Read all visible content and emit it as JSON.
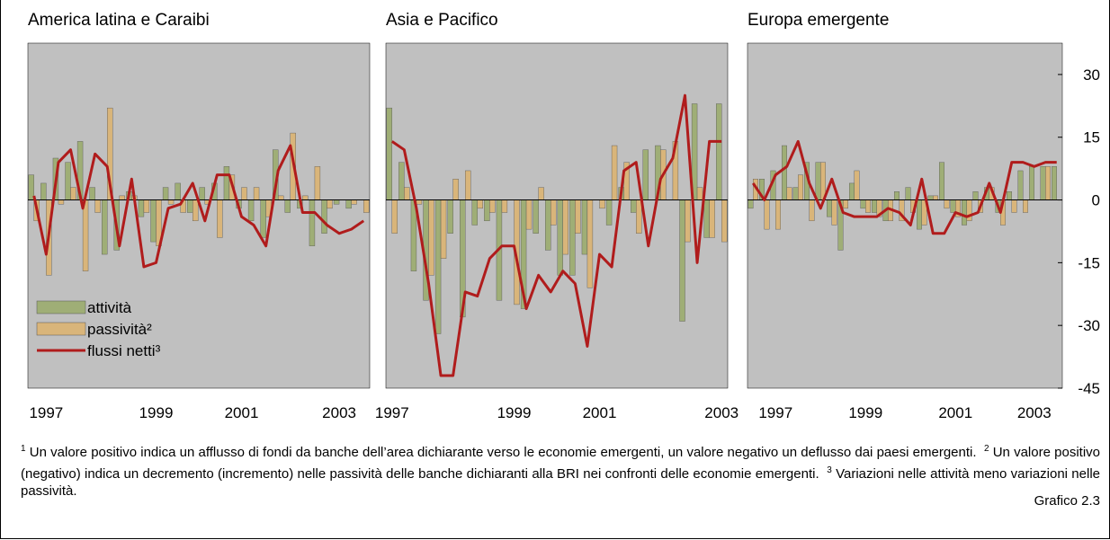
{
  "chart_data": [
    {
      "type": "bar",
      "title": "America latina e Caraibi",
      "categories": [
        null,
        "1997",
        null,
        null,
        null,
        null,
        null,
        null,
        null,
        null,
        "1999",
        null,
        null,
        null,
        null,
        null,
        null,
        "2001",
        null,
        null,
        null,
        null,
        null,
        null,
        null,
        "2003",
        null,
        null
      ],
      "legend": "lower left",
      "series": [
        {
          "name": "attività",
          "color": "#9fae76",
          "values": [
            6,
            4,
            10,
            9,
            14,
            3,
            -13,
            -12,
            2,
            -4,
            -10,
            3,
            4,
            -3,
            3,
            4,
            8,
            -2,
            -5,
            -9,
            12,
            -3,
            -2,
            -11,
            -8,
            -1,
            -2,
            0
          ]
        },
        {
          "name": "passività²",
          "color": "#d9b57a",
          "values": [
            -5,
            -18,
            -1,
            3,
            -17,
            -3,
            22,
            1,
            1,
            -3,
            -11,
            -1,
            -3,
            -5,
            -1,
            -9,
            6,
            3,
            3,
            -4,
            1,
            16,
            1,
            8,
            -2,
            0,
            -1,
            -3
          ]
        },
        {
          "name": "flussi netti³",
          "type": "line",
          "color": "#b01c1c",
          "values": [
            1,
            -13,
            9,
            12,
            -2,
            11,
            8,
            -11,
            5,
            -16,
            -15,
            -2,
            -1,
            4,
            -5,
            6,
            6,
            -4,
            -6,
            -11,
            7,
            13,
            -3,
            -3,
            -6,
            -8,
            -7,
            -5
          ]
        }
      ],
      "ylim": [
        -45,
        37.5
      ]
    },
    {
      "type": "bar",
      "title": "Asia e Pacifico",
      "categories": [
        "1997",
        null,
        null,
        null,
        null,
        null,
        null,
        null,
        null,
        null,
        "1999",
        null,
        null,
        null,
        null,
        null,
        null,
        "2001",
        null,
        null,
        null,
        null,
        null,
        null,
        null,
        null,
        null,
        "2003"
      ],
      "series": [
        {
          "color": "#9fae76",
          "values": [
            22,
            9,
            -17,
            -24,
            -32,
            -8,
            -28,
            -6,
            -5,
            -24,
            0,
            -26,
            -8,
            -12,
            -18,
            -18,
            -13,
            0,
            -6,
            3,
            -3,
            12,
            13,
            0,
            -29,
            23,
            -9,
            23
          ]
        },
        {
          "color": "#d9b57a",
          "values": [
            -8,
            3,
            -1,
            -18,
            -14,
            5,
            7,
            -2,
            -3,
            -3,
            -25,
            -7,
            3,
            -6,
            -13,
            -8,
            -21,
            -2,
            13,
            9,
            -8,
            0,
            12,
            14,
            -10,
            3,
            -9,
            -10
          ]
        },
        {
          "type": "line",
          "color": "#b01c1c",
          "values": [
            14,
            12,
            -2,
            -20,
            -42,
            -42,
            -22,
            -23,
            -14,
            -11,
            -11,
            -26,
            -18,
            -22,
            -17,
            -20,
            -35,
            -13,
            -16,
            7,
            9,
            -11,
            5,
            10,
            25,
            -15,
            14,
            14
          ]
        }
      ],
      "ylim": [
        -45,
        37.5
      ]
    },
    {
      "type": "bar",
      "title": "Europa emergente",
      "categories": [
        null,
        null,
        "1997",
        null,
        null,
        null,
        null,
        null,
        null,
        null,
        "1999",
        null,
        null,
        null,
        null,
        null,
        null,
        null,
        "2001",
        null,
        null,
        null,
        null,
        null,
        null,
        "2003",
        null,
        null
      ],
      "series": [
        {
          "color": "#9fae76",
          "values": [
            -2,
            5,
            7,
            13,
            3,
            9,
            9,
            -4,
            -12,
            4,
            -2,
            -3,
            -5,
            2,
            3,
            -7,
            1,
            9,
            -3,
            -6,
            2,
            3,
            -3,
            2,
            7,
            8,
            8,
            8
          ]
        },
        {
          "color": "#d9b57a",
          "values": [
            5,
            -7,
            -7,
            3,
            6,
            -5,
            9,
            -6,
            -2,
            7,
            -3,
            -4,
            -5,
            -5,
            -3,
            -6,
            1,
            -2,
            -4,
            -5,
            -3,
            3,
            -6,
            -3,
            -3,
            0,
            8,
            0
          ]
        },
        {
          "type": "line",
          "color": "#b01c1c",
          "values": [
            4,
            0,
            6,
            8,
            14,
            4,
            -2,
            5,
            -3,
            -4,
            -4,
            -4,
            -2,
            -3,
            -6,
            5,
            -8,
            -8,
            -3,
            -4,
            -3,
            4,
            -3,
            9,
            9,
            8,
            9,
            9
          ]
        }
      ],
      "ylim": [
        -45,
        37.5
      ],
      "yticks": [
        30,
        15,
        0,
        -15,
        -30,
        -45
      ]
    }
  ],
  "footnotes": [
    {
      "mark": "1",
      "text": "Un valore positivo indica un afflusso di fondi da banche dell’area dichiarante verso le economie emergenti, un valore negativo un deflusso dai paesi emergenti."
    },
    {
      "mark": "2",
      "text": "Un valore positivo (negativo) indica un decremento (incremento) nelle passività delle banche dichiaranti alla BRI nei confronti delle economie emergenti."
    },
    {
      "mark": "3",
      "text": "Variazioni nelle attività meno variazioni nelle passività."
    }
  ],
  "figure_label": "Grafico 2.3"
}
